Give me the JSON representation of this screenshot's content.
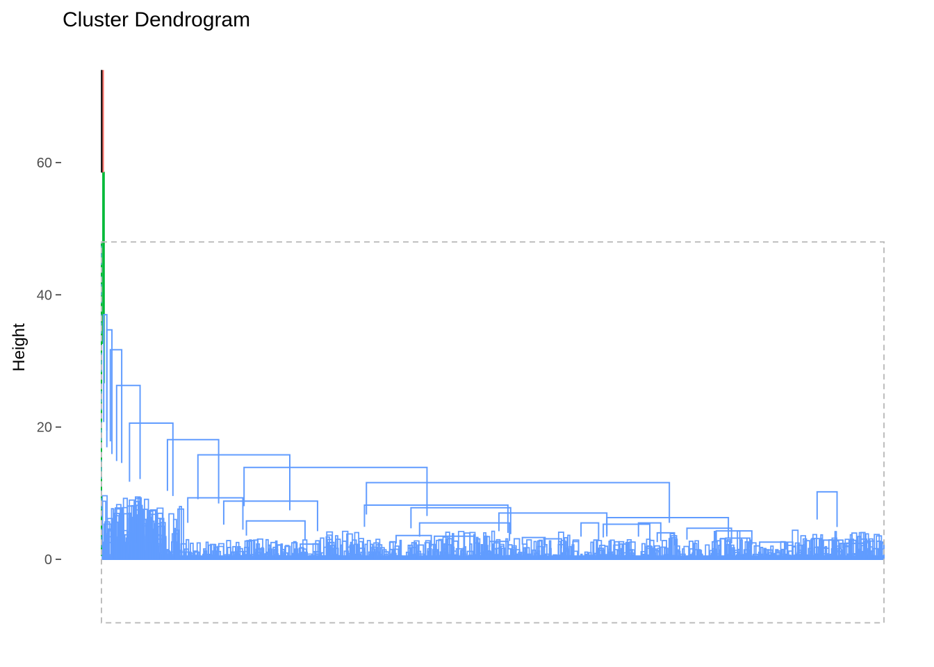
{
  "chart_data": {
    "type": "dendrogram",
    "title": "Cluster Dendrogram",
    "xlabel": "",
    "ylabel": "Height",
    "ylim": [
      -9.8,
      74
    ],
    "y_ticks": [
      0,
      20,
      40,
      60
    ],
    "y_tick_labels": [
      "0",
      "20",
      "40",
      "60"
    ],
    "grid": false,
    "colors": {
      "main_cluster": "#619CFF",
      "cluster_2": "#00BA38",
      "cluster_1": "#F8766D",
      "root": "#000000",
      "rect_border": "#bdbdbd",
      "axis_text": "#4d4d4d"
    },
    "main_cluster_rect": {
      "x_range": [
        0,
        1
      ],
      "y_range": [
        -9.6,
        48
      ]
    },
    "root_height": 74,
    "merges": [
      {
        "height": 58.5,
        "left": [
          0,
          0.002
        ],
        "right": [
          0.002,
          0.003
        ],
        "color": "cluster_2"
      },
      {
        "height": 37.0,
        "left": [
          0,
          0.004
        ],
        "right": [
          0.004,
          0.008
        ],
        "color": "main_cluster"
      },
      {
        "height": 34.7,
        "left": [
          0.004,
          0.008
        ],
        "right": [
          0.008,
          0.017
        ],
        "color": "main_cluster"
      },
      {
        "height": 31.7,
        "left": [
          0.004,
          0.017
        ],
        "right": [
          0.017,
          0.033
        ],
        "color": "main_cluster"
      },
      {
        "height": 26.3,
        "left": [
          0.004,
          0.033
        ],
        "right": [
          0.033,
          0.064
        ],
        "color": "main_cluster"
      },
      {
        "height": 20.6,
        "left": [
          0.006,
          0.064
        ],
        "right": [
          0.064,
          0.117
        ],
        "color": "main_cluster"
      },
      {
        "height": 18.1,
        "left": [
          0.05,
          0.117
        ],
        "right": [
          0.117,
          0.181
        ],
        "color": "main_cluster"
      },
      {
        "height": 15.8,
        "left": [
          0.064,
          0.181
        ],
        "right": [
          0.181,
          0.299
        ],
        "color": "main_cluster"
      },
      {
        "height": 13.9,
        "left": [
          0.064,
          0.299
        ],
        "right": [
          0.299,
          0.532
        ],
        "color": "main_cluster"
      },
      {
        "height": 11.6,
        "left": [
          0.144,
          0.532
        ],
        "right": [
          0.532,
          0.919
        ],
        "color": "main_cluster"
      },
      {
        "height": 10.2,
        "left": [
          0.902,
          0.927
        ],
        "right": [
          0.927,
          0.953
        ],
        "color": "main_cluster"
      },
      {
        "height": 9.3,
        "left": [
          0.075,
          0.144
        ],
        "right": [
          0.144,
          0.216
        ],
        "color": "main_cluster"
      },
      {
        "height": 8.8,
        "left": [
          0.095,
          0.216
        ],
        "right": [
          0.216,
          0.335
        ],
        "color": "main_cluster"
      },
      {
        "height": 8.2,
        "left": [
          0.216,
          0.455
        ],
        "right": [
          0.455,
          0.583
        ],
        "color": "main_cluster"
      },
      {
        "height": 7.8,
        "left": [
          0.335,
          0.455
        ],
        "right": [
          0.455,
          0.59
        ],
        "color": "main_cluster"
      },
      {
        "height": 7.0,
        "left": [
          0.455,
          0.56
        ],
        "right": [
          0.56,
          0.731
        ],
        "color": "main_cluster"
      },
      {
        "height": 6.3,
        "left": [
          0.56,
          0.731
        ],
        "right": [
          0.731,
          0.871
        ],
        "color": "main_cluster"
      },
      {
        "height": 5.8,
        "left": [
          0.153,
          0.216
        ],
        "right": [
          0.216,
          0.303
        ],
        "color": "main_cluster"
      },
      {
        "height": 5.5,
        "left": [
          0.352,
          0.46
        ],
        "right": [
          0.46,
          0.582
        ],
        "color": "main_cluster"
      },
      {
        "height": 5.5,
        "left": [
          0.598,
          0.627
        ],
        "right": [
          0.627,
          0.643
        ],
        "color": "main_cluster"
      },
      {
        "height": 5.5,
        "left": [
          0.672,
          0.7
        ],
        "right": [
          0.7,
          0.729
        ],
        "color": "main_cluster"
      },
      {
        "height": 5.3,
        "left": [
          0.612,
          0.67
        ],
        "right": [
          0.67,
          0.731
        ],
        "color": "main_cluster"
      },
      {
        "height": 4.7,
        "left": [
          0.731,
          0.765
        ],
        "right": [
          0.765,
          0.845
        ],
        "color": "main_cluster"
      },
      {
        "height": 4.3,
        "left": [
          0.765,
          0.806
        ],
        "right": [
          0.806,
          0.856
        ],
        "color": "main_cluster"
      },
      {
        "height": 4.0,
        "left": [
          0.697,
          0.723
        ],
        "right": [
          0.723,
          0.741
        ],
        "color": "main_cluster"
      },
      {
        "height": 3.6,
        "left": [
          0.348,
          0.404
        ],
        "right": [
          0.404,
          0.438
        ],
        "color": "main_cluster"
      },
      {
        "height": 3.5,
        "left": [
          0.39,
          0.46
        ],
        "right": [
          0.46,
          0.493
        ],
        "color": "main_cluster"
      },
      {
        "height": 3.3,
        "left": [
          0.52,
          0.555
        ],
        "right": [
          0.555,
          0.578
        ],
        "color": "main_cluster"
      },
      {
        "height": 3.2,
        "left": [
          0.78,
          0.815
        ],
        "right": [
          0.815,
          0.842
        ],
        "color": "main_cluster"
      },
      {
        "height": 3.1,
        "left": [
          0.555,
          0.575
        ],
        "right": [
          0.575,
          0.6
        ],
        "color": "main_cluster"
      },
      {
        "height": 2.9,
        "left": [
          0.9,
          0.935
        ],
        "right": [
          0.935,
          0.96
        ],
        "color": "main_cluster"
      },
      {
        "height": 2.7,
        "left": [
          0.483,
          0.508
        ],
        "right": [
          0.508,
          0.531
        ],
        "color": "main_cluster"
      },
      {
        "height": 2.6,
        "left": [
          0.822,
          0.86
        ],
        "right": [
          0.86,
          0.889
        ],
        "color": "main_cluster"
      },
      {
        "height": 2.4,
        "left": [
          0.927,
          0.96
        ],
        "right": [
          0.96,
          0.995
        ],
        "color": "main_cluster"
      },
      {
        "height": 2.3,
        "left": [
          0.24,
          0.267
        ],
        "right": [
          0.267,
          0.29
        ],
        "color": "main_cluster"
      }
    ]
  }
}
